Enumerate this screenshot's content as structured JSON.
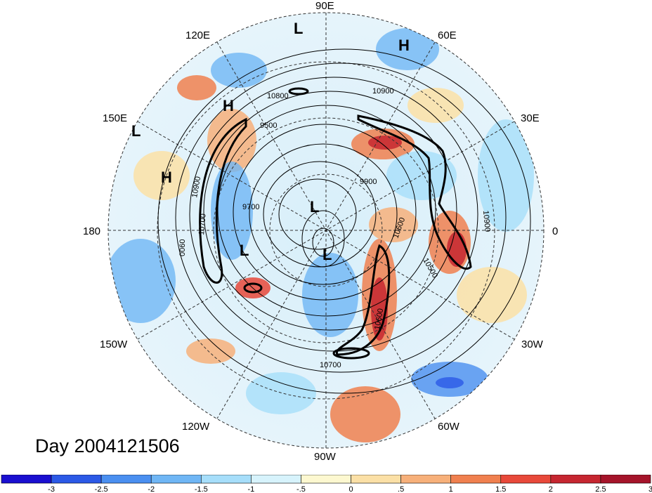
{
  "title": "Day 2004121506",
  "longitude_labels": {
    "lon_90e": "90E",
    "lon_60e": "60E",
    "lon_120e": "120E",
    "lon_150e": "150E",
    "lon_30e": "30E",
    "lon_180": "180",
    "lon_0": "0",
    "lon_150w": "150W",
    "lon_30w": "30W",
    "lon_120w": "120W",
    "lon_60w": "60W",
    "lon_90w": "90W"
  },
  "pressure_systems": [
    "L",
    "H",
    "H",
    "L",
    "H",
    "L",
    "L",
    "L"
  ],
  "contour_labels": [
    "10800",
    "10900",
    "9500",
    "9900",
    "9700",
    "10900",
    "10700",
    "0060",
    "10900",
    "10500",
    "10600",
    "10700",
    "10600"
  ],
  "colorbar": {
    "colors": [
      "#1a0fd0",
      "#2b59e6",
      "#4a8ff0",
      "#6fb6f5",
      "#a6defa",
      "#d7f3fc",
      "#fdf8d0",
      "#fbe0a6",
      "#f7b07a",
      "#f0804f",
      "#e8493a",
      "#c62630",
      "#a5142a"
    ],
    "tick_labels": [
      "-3",
      "-2.5",
      "-2",
      "-1.5",
      "-1",
      "-.5",
      "0",
      ".5",
      "1",
      "1.5",
      "2",
      "2.5",
      "3"
    ]
  },
  "colors": {
    "grid": "#333333",
    "contour": "#000000"
  }
}
